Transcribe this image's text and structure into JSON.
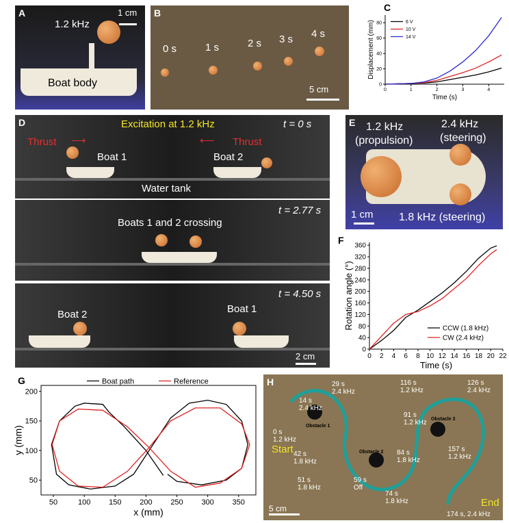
{
  "photos": {
    "a": {
      "label": "A",
      "frequency": "1.2 kHz",
      "scale": "1 cm",
      "body": "Boat body"
    },
    "b": {
      "label": "B",
      "times": [
        "0 s",
        "1 s",
        "2 s",
        "3 s",
        "4 s"
      ],
      "scale": "5 cm"
    },
    "d": {
      "label": "D",
      "frames": [
        {
          "time": "t = 0 s",
          "caption": "Excitation at 1.2 kHz",
          "thrust": [
            "Thrust",
            "Thrust"
          ],
          "boats": [
            "Boat 1",
            "Boat 2"
          ],
          "tank": "Water tank"
        },
        {
          "time": "t = 2.77 s",
          "caption": "Boats 1 and 2 crossing"
        },
        {
          "time": "t = 4.50 s",
          "boats": [
            "Boat 2",
            "Boat 1"
          ],
          "scale": "2 cm"
        }
      ]
    },
    "e": {
      "label": "E",
      "propulsion": [
        "1.2 kHz",
        "(propulsion)"
      ],
      "steering_top": [
        "2.4 kHz",
        "(steering)"
      ],
      "scale": "1 cm",
      "steering_bottom": "1.8 kHz (steering)"
    },
    "h": {
      "label": "H",
      "start": "Start",
      "end": "End",
      "obstacles": [
        "Obstacle 1",
        "Obstacle 2",
        "Obstacle 3"
      ],
      "scale": "5 cm",
      "marks": [
        [
          "0 s",
          "1.2 kHz"
        ],
        [
          "14 s",
          "2.4 kHz"
        ],
        [
          "29 s",
          "2.4 kHz"
        ],
        [
          "42 s",
          "1.8 kHz"
        ],
        [
          "51 s",
          "1.8 kHz"
        ],
        [
          "59 s",
          "Off"
        ],
        [
          "74 s",
          "1.8 kHz"
        ],
        [
          "84 s",
          "1.8 kHz"
        ],
        [
          "91 s",
          "1.2 kHz"
        ],
        [
          "116 s",
          "1.2 kHz"
        ],
        [
          "126 s",
          "2.4 kHz"
        ],
        [
          "157 s",
          "1.2 kHz"
        ]
      ],
      "last": "174 s, 2.4 kHz"
    }
  },
  "chart_data": [
    {
      "type": "line",
      "panel": "C",
      "x_label": "Time (s)",
      "y_label": "Displacement (mm)",
      "x": [
        0,
        0.5,
        1,
        1.5,
        2,
        2.5,
        3,
        3.5,
        4,
        4.5
      ],
      "series": [
        {
          "name": "6 V",
          "color": "#000000",
          "values": [
            0,
            0.5,
            1,
            1.5,
            3,
            6,
            9,
            12,
            16,
            21
          ]
        },
        {
          "name": "10 V",
          "color": "#e02020",
          "values": [
            0,
            0.5,
            1,
            2,
            5,
            10,
            15,
            21,
            29,
            38
          ]
        },
        {
          "name": "14 V",
          "color": "#2a2ad0",
          "values": [
            0,
            0.5,
            1,
            3,
            8,
            17,
            29,
            44,
            63,
            87
          ]
        }
      ],
      "xlim": [
        0,
        4.6
      ],
      "ylim": [
        0,
        90
      ],
      "xticks": [
        0,
        1,
        2,
        3,
        4
      ],
      "yticks": [
        0,
        20,
        40,
        60,
        80
      ],
      "legend": "upper left",
      "box": false
    },
    {
      "type": "line",
      "panel": "F",
      "x_label": "Time (s)",
      "y_label": "Rotation angle (°)",
      "x": [
        0,
        2,
        4,
        6,
        8,
        10,
        12,
        14,
        16,
        18,
        20,
        21
      ],
      "series": [
        {
          "name": "CCW (1.8 kHz)",
          "color": "#000000",
          "values": [
            0,
            30,
            65,
            110,
            135,
            165,
            195,
            230,
            270,
            315,
            350,
            358
          ]
        },
        {
          "name": "CW (2.4 kHz)",
          "color": "#e02020",
          "values": [
            0,
            45,
            90,
            120,
            130,
            150,
            175,
            210,
            245,
            290,
            330,
            345
          ]
        }
      ],
      "xlim": [
        0,
        22
      ],
      "ylim": [
        0,
        370
      ],
      "xticks": [
        0,
        2,
        4,
        6,
        8,
        10,
        12,
        14,
        16,
        18,
        20,
        22
      ],
      "yticks": [
        0,
        40,
        80,
        120,
        160,
        200,
        240,
        280,
        320,
        360
      ],
      "legend": "lower right",
      "box": false
    },
    {
      "type": "line",
      "panel": "G",
      "x_label": "x (mm)",
      "y_label": "y (mm)",
      "series": [
        {
          "name": "Boat path",
          "color": "#000000",
          "x": [
            228,
            200,
            165,
            140,
            130,
            100,
            85,
            60,
            47,
            55,
            75,
            110,
            150,
            180,
            205,
            240,
            270,
            300,
            330,
            355,
            365,
            355,
            330,
            290,
            250,
            235
          ],
          "values": [
            58,
            100,
            140,
            165,
            178,
            180,
            175,
            150,
            110,
            60,
            42,
            35,
            40,
            60,
            100,
            155,
            180,
            185,
            178,
            150,
            110,
            70,
            50,
            42,
            48,
            60
          ]
        },
        {
          "name": "Reference",
          "color": "#e02020",
          "x": [
            205,
            170,
            130,
            90,
            60,
            48,
            60,
            90,
            130,
            170,
            205,
            240,
            280,
            320,
            355,
            368,
            355,
            320,
            280,
            240,
            205
          ],
          "values": [
            105,
            140,
            168,
            170,
            150,
            110,
            65,
            40,
            38,
            65,
            105,
            150,
            172,
            172,
            145,
            110,
            70,
            45,
            38,
            65,
            105
          ]
        }
      ],
      "xlim": [
        30,
        378
      ],
      "ylim": [
        25,
        210
      ],
      "xticks": [
        50,
        100,
        150,
        200,
        250,
        300,
        350
      ],
      "yticks": [
        50,
        100,
        150,
        200
      ],
      "legend": "upper center",
      "box": true
    }
  ]
}
